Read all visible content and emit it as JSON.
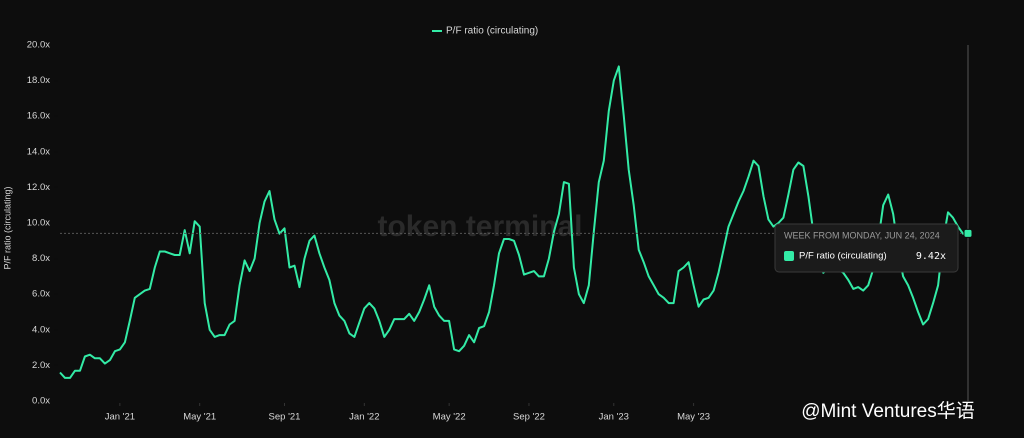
{
  "chart_data": {
    "type": "line",
    "legend": "top",
    "y_label": "P/F ratio (circulating)",
    "watermarks": [
      "token terminal",
      "@Mint Ventures华语"
    ],
    "series": [
      {
        "name": "P/F ratio (circulating)",
        "color": "#33eba6",
        "values": [
          1.6,
          1.3,
          1.3,
          1.7,
          1.7,
          2.5,
          2.6,
          2.4,
          2.4,
          2.1,
          2.3,
          2.8,
          2.9,
          3.3,
          4.5,
          5.8,
          6.0,
          6.2,
          6.3,
          7.5,
          8.4,
          8.4,
          8.3,
          8.2,
          8.2,
          9.6,
          8.3,
          10.1,
          9.8,
          5.5,
          4.0,
          3.6,
          3.7,
          3.7,
          4.3,
          4.5,
          6.5,
          7.9,
          7.3,
          8.0,
          10.0,
          11.2,
          11.8,
          10.2,
          9.4,
          9.7,
          7.5,
          7.6,
          6.4,
          8.0,
          9.0,
          9.3,
          8.3,
          7.5,
          6.8,
          5.5,
          4.8,
          4.5,
          3.8,
          3.6,
          4.4,
          5.2,
          5.5,
          5.2,
          4.5,
          3.6,
          4.0,
          4.6,
          4.6,
          4.6,
          4.9,
          4.5,
          5.0,
          5.7,
          6.5,
          5.3,
          4.8,
          4.5,
          4.5,
          2.9,
          2.8,
          3.1,
          3.7,
          3.3,
          4.1,
          4.2,
          5.0,
          6.5,
          8.3,
          9.1,
          9.1,
          9.0,
          8.2,
          7.1,
          7.2,
          7.3,
          7.0,
          7.0,
          8.0,
          9.5,
          10.5,
          12.3,
          12.2,
          7.5,
          6.0,
          5.5,
          6.5,
          9.5,
          12.3,
          13.5,
          16.3,
          18.0,
          18.8,
          16.0,
          13.0,
          11.0,
          8.5,
          7.8,
          7.0,
          6.5,
          6.0,
          5.8,
          5.5,
          5.5,
          7.3,
          7.5,
          7.8,
          6.5,
          5.3,
          5.7,
          5.8,
          6.2,
          7.2,
          8.5,
          9.8,
          10.5,
          11.2,
          11.8,
          12.6,
          13.5,
          13.2,
          11.5,
          10.2,
          9.8,
          10.0,
          10.3,
          11.6,
          13.0,
          13.4,
          13.2,
          11.5,
          9.5,
          8.5,
          7.2,
          7.5,
          8.0,
          7.4,
          7.2,
          6.8,
          6.3,
          6.4,
          6.2,
          6.5,
          7.4,
          9.0,
          11.0,
          11.6,
          10.5,
          8.5,
          7.0,
          6.5,
          5.8,
          5.0,
          4.3,
          4.6,
          5.5,
          6.5,
          9.0,
          10.6,
          10.3,
          9.8,
          9.4,
          9.42
        ]
      }
    ],
    "xlim": [
      0,
      182
    ],
    "xticks": [
      {
        "value": 12,
        "label": "Jan '21"
      },
      {
        "value": 28,
        "label": "May '21"
      },
      {
        "value": 45,
        "label": "Sep '21"
      },
      {
        "value": 61,
        "label": "Jan '22"
      },
      {
        "value": 78,
        "label": "May '22"
      },
      {
        "value": 94,
        "label": "Sep '22"
      },
      {
        "value": 111,
        "label": "Jan '23"
      },
      {
        "value": 127,
        "label": "May '23"
      }
    ],
    "ylim": [
      0,
      20
    ],
    "yticks": [
      {
        "value": 0,
        "label": "0.0x"
      },
      {
        "value": 2,
        "label": "2.0x"
      },
      {
        "value": 4,
        "label": "4.0x"
      },
      {
        "value": 6,
        "label": "6.0x"
      },
      {
        "value": 8,
        "label": "8.0x"
      },
      {
        "value": 10,
        "label": "10.0x"
      },
      {
        "value": 12,
        "label": "12.0x"
      },
      {
        "value": 14,
        "label": "14.0x"
      },
      {
        "value": 16,
        "label": "16.0x"
      },
      {
        "value": 18,
        "label": "18.0x"
      },
      {
        "value": 20,
        "label": "20.0x"
      }
    ],
    "tooltip": {
      "title": "WEEK FROM MONDAY, JUN 24, 2024",
      "index": 182,
      "value_label": "9.42x"
    }
  }
}
